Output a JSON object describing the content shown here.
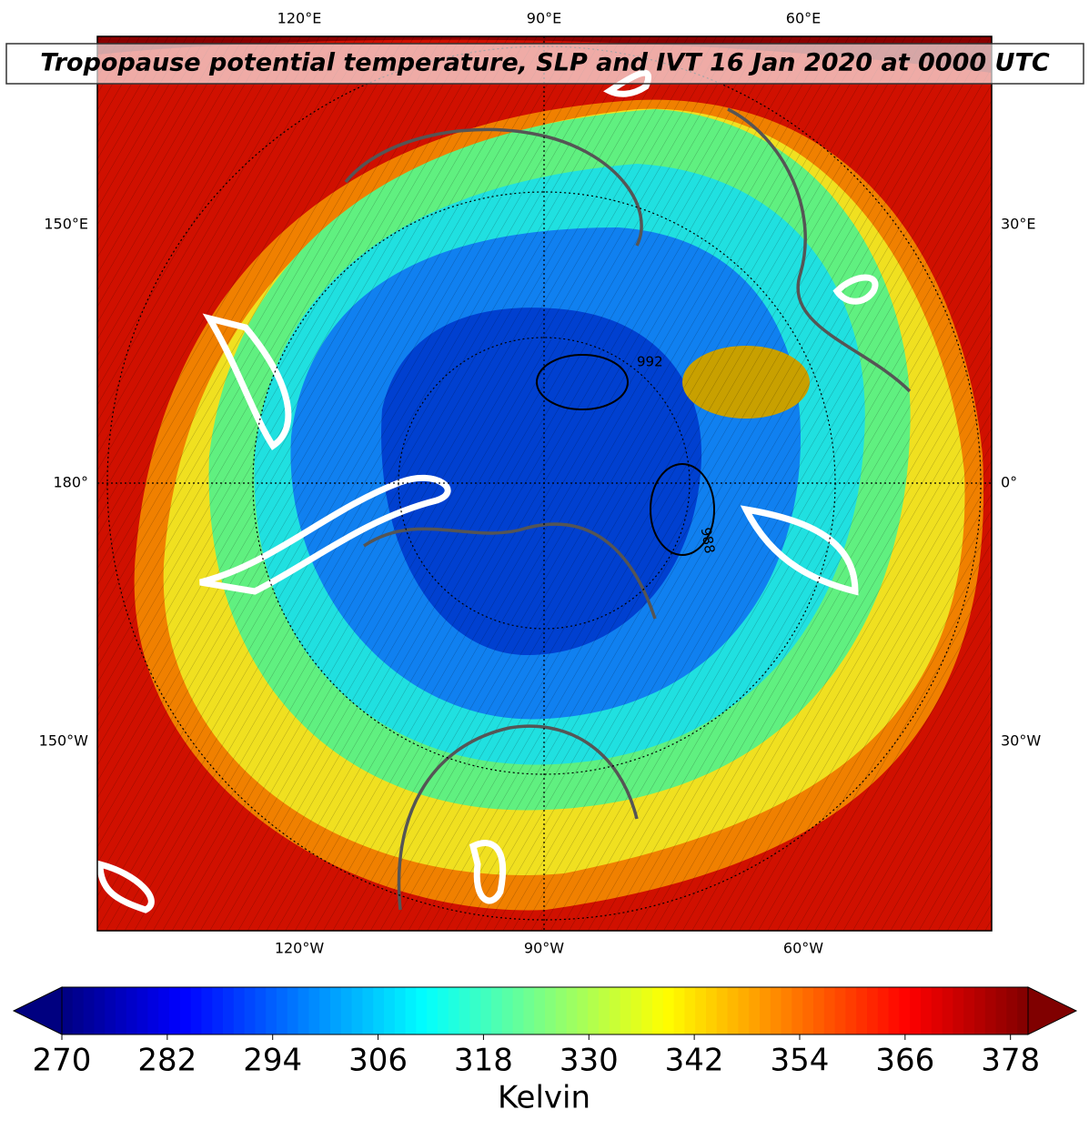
{
  "title": "Tropopause potential temperature, SLP and IVT 16 Jan 2020 at 0000 UTC",
  "map": {
    "top_labels": [
      "120°E",
      "90°E",
      "60°E"
    ],
    "bottom_labels": [
      "120°W",
      "90°W",
      "60°W"
    ],
    "left_labels": [
      "150°E",
      "180°",
      "150°W"
    ],
    "right_labels": [
      "30°E",
      "0°",
      "30°W"
    ],
    "contour_labels": [
      "992",
      "988"
    ]
  },
  "colorbar": {
    "colormap": "jet",
    "range": [
      270,
      380
    ],
    "ticks": [
      270,
      282,
      294,
      306,
      318,
      330,
      342,
      354,
      366,
      378
    ],
    "label": "Kelvin"
  }
}
